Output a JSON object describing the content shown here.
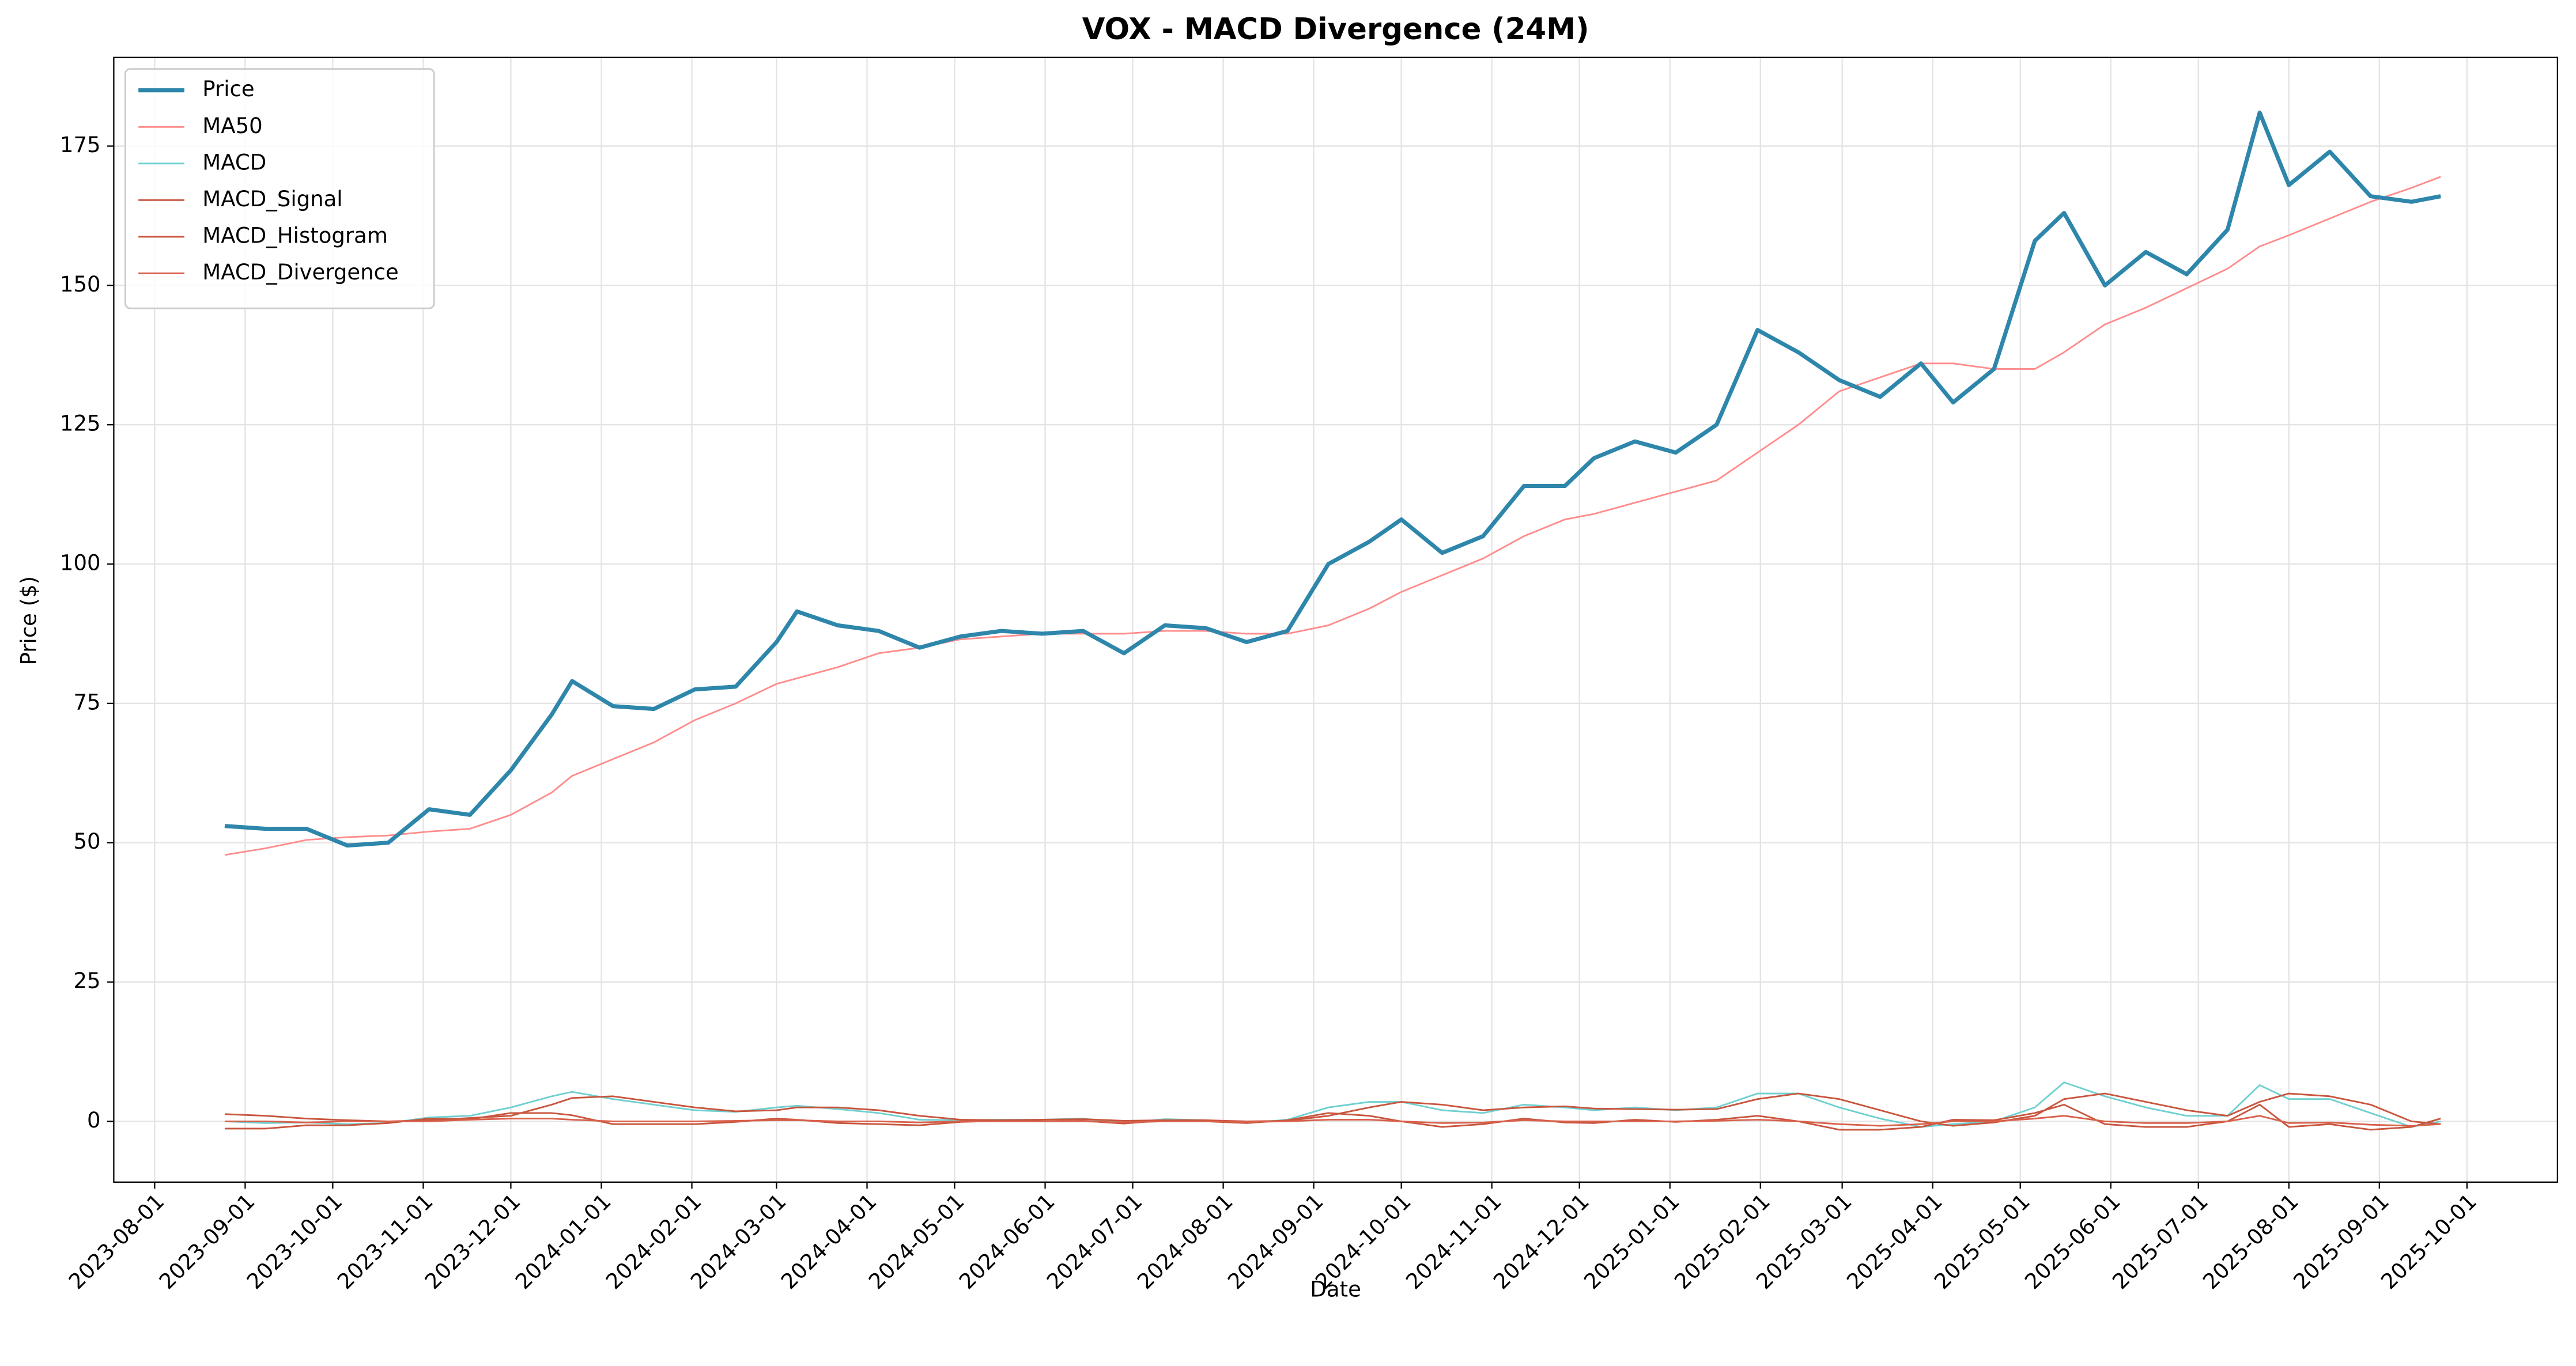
{
  "chart_data": {
    "type": "line",
    "title": "VOX - MACD Divergence (24M)",
    "xlabel": "Date",
    "ylabel": "Price ($)",
    "x": [
      "2023-08-25",
      "2023-09-08",
      "2023-09-22",
      "2023-10-06",
      "2023-10-20",
      "2023-11-03",
      "2023-11-17",
      "2023-12-01",
      "2023-12-15",
      "2023-12-22",
      "2024-01-05",
      "2024-01-19",
      "2024-02-02",
      "2024-02-16",
      "2024-03-01",
      "2024-03-08",
      "2024-03-22",
      "2024-04-05",
      "2024-04-19",
      "2024-05-03",
      "2024-05-17",
      "2024-05-31",
      "2024-06-14",
      "2024-06-28",
      "2024-07-12",
      "2024-07-26",
      "2024-08-09",
      "2024-08-23",
      "2024-09-06",
      "2024-09-20",
      "2024-10-01",
      "2024-10-15",
      "2024-10-29",
      "2024-11-12",
      "2024-11-26",
      "2024-12-06",
      "2024-12-20",
      "2025-01-03",
      "2025-01-17",
      "2025-01-31",
      "2025-02-14",
      "2025-02-28",
      "2025-03-14",
      "2025-03-28",
      "2025-04-08",
      "2025-04-22",
      "2025-05-06",
      "2025-05-16",
      "2025-05-30",
      "2025-06-13",
      "2025-06-27",
      "2025-07-11",
      "2025-07-22",
      "2025-08-01",
      "2025-08-15",
      "2025-08-29",
      "2025-09-12",
      "2025-09-22"
    ],
    "series": [
      {
        "name": "Price",
        "color": "#2e86ab",
        "width": 2.5,
        "values": [
          53,
          52.5,
          52.5,
          49.5,
          50,
          56,
          55,
          63,
          73,
          79,
          74.5,
          74,
          77.5,
          78,
          86,
          91.5,
          89,
          88,
          85,
          87,
          88,
          87.5,
          88,
          84,
          89,
          88.5,
          86,
          88,
          100,
          104,
          108,
          102,
          105,
          114,
          114,
          119,
          122,
          120,
          125,
          142,
          138,
          133,
          130,
          136,
          129,
          135,
          158,
          163,
          150,
          156,
          152,
          160,
          181,
          168,
          174,
          166,
          165,
          166
        ]
      },
      {
        "name": "MA50",
        "color": "#ff8c8c",
        "width": 1,
        "values": [
          47.8,
          49,
          50.5,
          51,
          51.3,
          52,
          52.5,
          55,
          59,
          62,
          65,
          68,
          72,
          75,
          78.5,
          79.5,
          81.5,
          84,
          85,
          86.5,
          87,
          87.5,
          87.5,
          87.5,
          88,
          88,
          87.5,
          87.5,
          89,
          92,
          95,
          98,
          101,
          105,
          108,
          109,
          111,
          113,
          115,
          120,
          125,
          131,
          133.5,
          136,
          136,
          135,
          135,
          138,
          143,
          146,
          149.5,
          153,
          157,
          159,
          162,
          165,
          167.5,
          169.5
        ]
      },
      {
        "name": "MACD",
        "color": "#6fd0d0",
        "width": 1,
        "values": [
          0,
          -0.3,
          -0.2,
          -0.5,
          -0.3,
          0.7,
          1,
          2.5,
          4.5,
          5.3,
          4,
          3,
          2,
          1.7,
          2.5,
          2.8,
          2.2,
          1.5,
          0.3,
          0.2,
          0.3,
          0.3,
          0.5,
          -0.3,
          0.4,
          0.2,
          -0.3,
          0.3,
          2.5,
          3.5,
          3.5,
          2,
          1.5,
          3,
          2.5,
          2,
          2.5,
          2,
          2.5,
          5,
          5,
          2.5,
          0.5,
          -1,
          -0.5,
          0,
          2.5,
          7,
          4.5,
          2.5,
          1,
          1,
          6.5,
          4,
          4,
          1.5,
          -1,
          0
        ]
      },
      {
        "name": "MACD_Signal",
        "color": "#c8553d",
        "width": 1,
        "values": [
          1.3,
          1,
          0.5,
          0.2,
          0,
          0.2,
          0.6,
          1,
          3,
          4.2,
          4.5,
          3.5,
          2.5,
          1.8,
          2,
          2.5,
          2.5,
          2,
          1,
          0.3,
          0.2,
          0.3,
          0.4,
          0.1,
          0.2,
          0.2,
          0,
          0.1,
          1,
          2.5,
          3.5,
          3,
          2,
          2.5,
          2.7,
          2.3,
          2.2,
          2.1,
          2.2,
          4,
          5,
          4,
          2,
          0,
          -0.8,
          -0.2,
          1,
          4,
          5,
          3.5,
          2,
          1,
          3.5,
          5,
          4.5,
          3,
          0,
          -0.5
        ]
      },
      {
        "name": "MACD_Histogram",
        "color": "#c8553d",
        "width": 1,
        "values": [
          -1.3,
          -1.3,
          -0.7,
          -0.7,
          -0.3,
          0.5,
          0.4,
          1.5,
          1.5,
          1.1,
          -0.5,
          -0.5,
          -0.5,
          -0.1,
          0.5,
          0.3,
          -0.3,
          -0.5,
          -0.7,
          -0.1,
          0.1,
          0,
          0.1,
          -0.4,
          0.2,
          0,
          -0.3,
          0.2,
          1.5,
          1,
          0,
          -1,
          -0.5,
          0.5,
          -0.2,
          -0.3,
          0.3,
          -0.1,
          0.3,
          1,
          0,
          -1.5,
          -1.5,
          -1,
          0.3,
          0.2,
          1.5,
          3,
          -0.5,
          -1,
          -1,
          0,
          3,
          -1,
          -0.5,
          -1.5,
          -1,
          0.5
        ]
      },
      {
        "name": "MACD_Divergence",
        "color": "#d9604a",
        "width": 1,
        "values": [
          0,
          0,
          -0.2,
          0,
          0,
          0,
          0.3,
          0.5,
          0.5,
          0.3,
          0,
          0,
          0,
          0.1,
          0.2,
          0.2,
          0,
          0,
          -0.2,
          0,
          0,
          0,
          0,
          -0.2,
          0,
          0,
          -0.1,
          0,
          0.3,
          0.3,
          0,
          -0.3,
          -0.2,
          0.2,
          0,
          0,
          0,
          0,
          0.1,
          0.3,
          0,
          -0.5,
          -0.8,
          -0.5,
          0,
          0,
          0.5,
          1,
          0,
          -0.3,
          -0.3,
          0,
          1,
          -0.3,
          -0.2,
          -0.6,
          -0.8,
          -0.5
        ]
      }
    ],
    "xlim": [
      "2023-07-18",
      "2025-11-01"
    ],
    "xticks": [
      "2023-08-01",
      "2023-09-01",
      "2023-10-01",
      "2023-11-01",
      "2023-12-01",
      "2024-01-01",
      "2024-02-01",
      "2024-03-01",
      "2024-04-01",
      "2024-05-01",
      "2024-06-01",
      "2024-07-01",
      "2024-08-01",
      "2024-09-01",
      "2024-10-01",
      "2024-11-01",
      "2024-12-01",
      "2025-01-01",
      "2025-02-01",
      "2025-03-01",
      "2025-04-01",
      "2025-05-01",
      "2025-06-01",
      "2025-07-01",
      "2025-08-01",
      "2025-09-01",
      "2025-10-01"
    ],
    "ylim": [
      -10.9,
      190.9
    ],
    "yticks": [
      0,
      25,
      50,
      75,
      100,
      125,
      150,
      175
    ],
    "grid": true,
    "legend": "upper left"
  }
}
